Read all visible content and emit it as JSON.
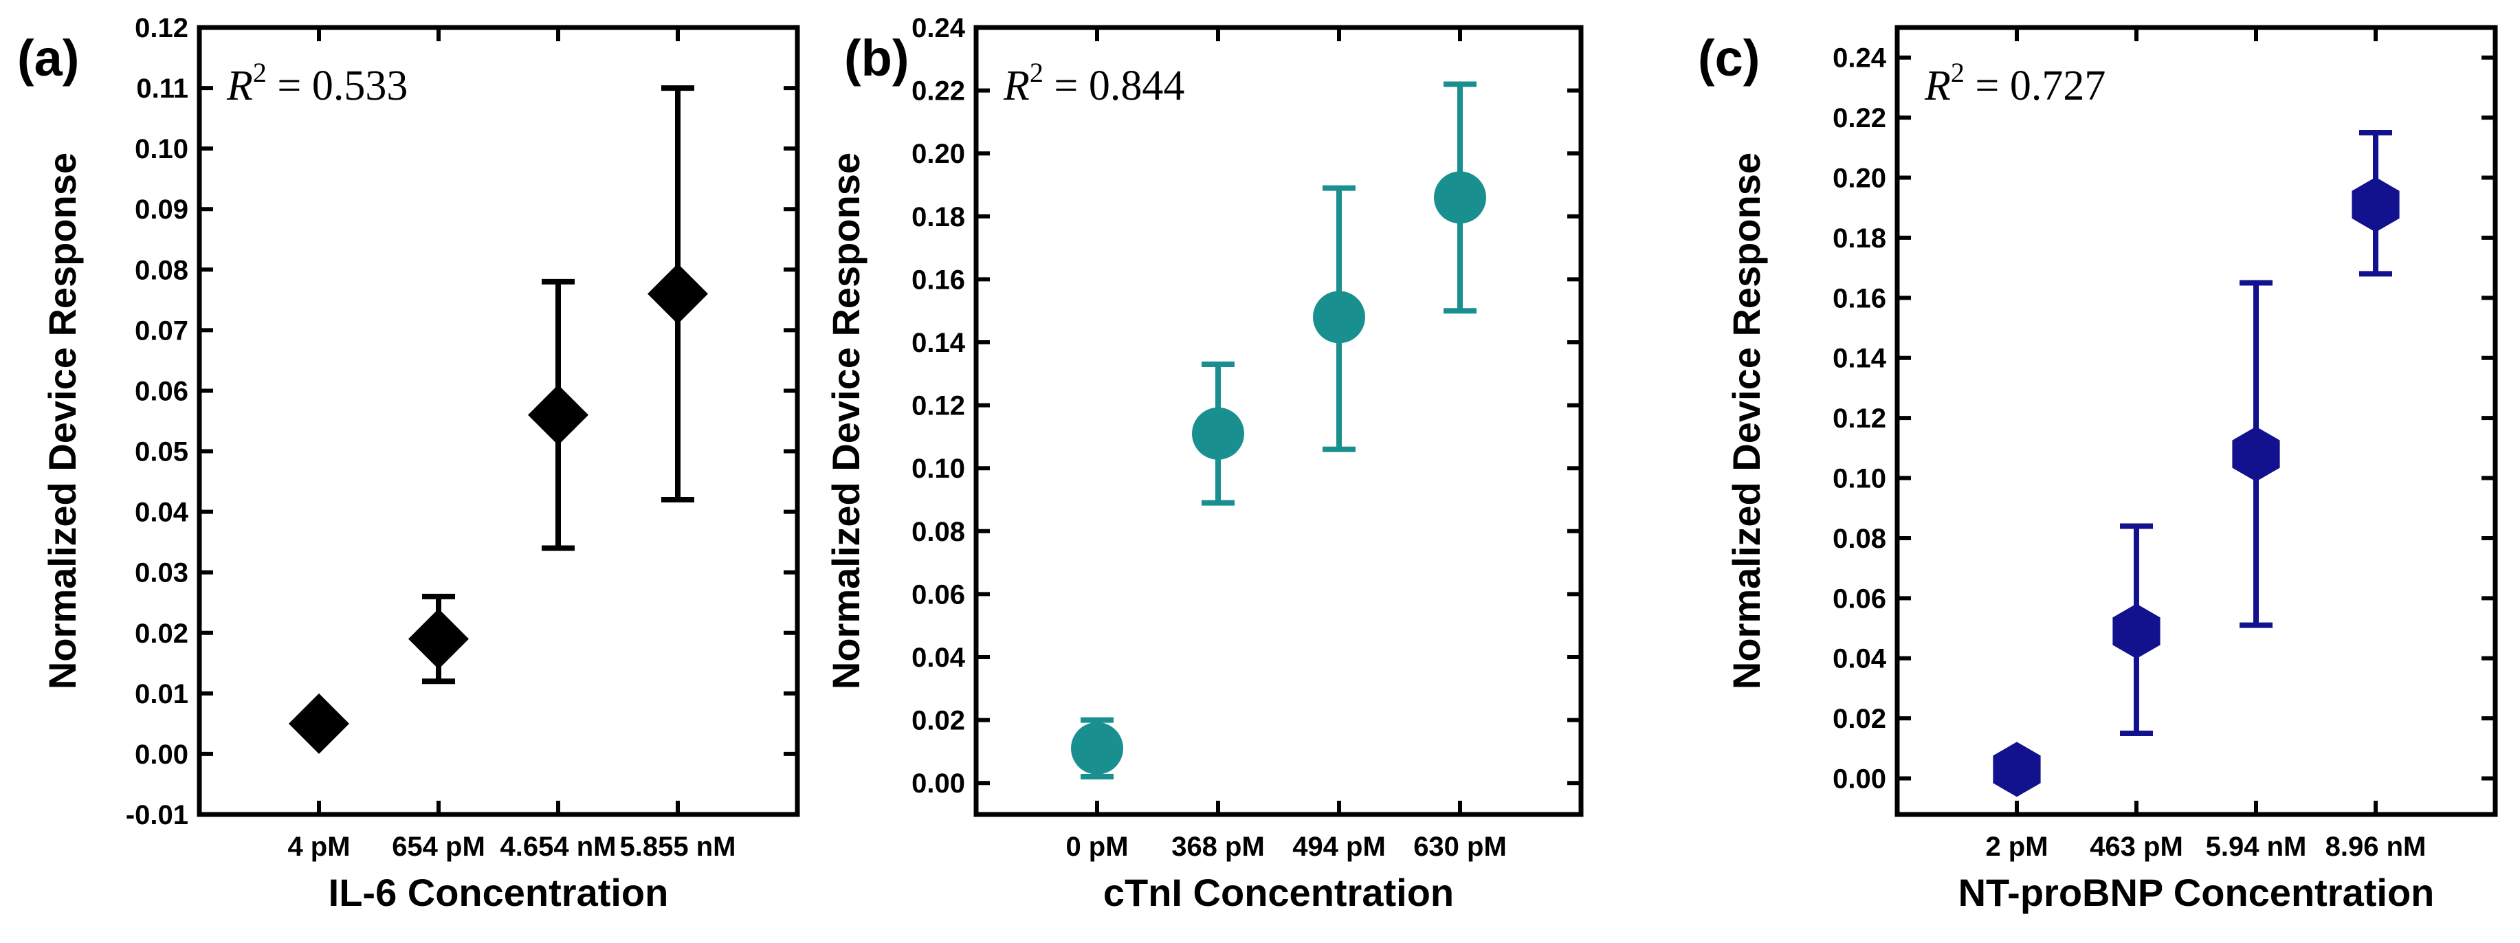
{
  "chart_data": [
    {
      "panel_label": "(a)",
      "type": "scatter",
      "marker": "diamond",
      "color": "#000000",
      "categories": [
        "4 pM",
        "654 pM",
        "4.654 nM",
        "5.855 nM"
      ],
      "values": [
        0.005,
        0.019,
        0.056,
        0.076
      ],
      "error_low": [
        0.005,
        0.012,
        0.034,
        0.042
      ],
      "error_high": [
        0.005,
        0.026,
        0.078,
        0.11
      ],
      "xlabel": "IL-6 Concentration",
      "ylabel": "Normalized Device Response",
      "ylim": [
        -0.01,
        0.12
      ],
      "yticks": [
        -0.01,
        0.0,
        0.01,
        0.02,
        0.03,
        0.04,
        0.05,
        0.06,
        0.07,
        0.08,
        0.09,
        0.1,
        0.11,
        0.12
      ],
      "ytick_labels": [
        "-0.01",
        "0.00",
        "0.01",
        "0.02",
        "0.03",
        "0.04",
        "0.05",
        "0.06",
        "0.07",
        "0.08",
        "0.09",
        "0.10",
        "0.11",
        "0.12"
      ],
      "r2_label": "R",
      "r2_exp": "2",
      "r2_value": " = 0.533"
    },
    {
      "panel_label": "(b)",
      "type": "scatter",
      "marker": "circle",
      "color": "#1a8f8f",
      "categories": [
        "0 pM",
        "368 pM",
        "494 pM",
        "630 pM"
      ],
      "values": [
        0.011,
        0.111,
        0.148,
        0.186
      ],
      "error_low": [
        0.002,
        0.089,
        0.106,
        0.15
      ],
      "error_high": [
        0.02,
        0.133,
        0.189,
        0.222
      ],
      "xlabel": "cTnI Concentration",
      "ylabel": "Normalized Device Response",
      "ylim": [
        -0.01,
        0.24
      ],
      "yticks": [
        0.0,
        0.02,
        0.04,
        0.06,
        0.08,
        0.1,
        0.12,
        0.14,
        0.16,
        0.18,
        0.2,
        0.22,
        0.24
      ],
      "ytick_labels": [
        "0.00",
        "0.02",
        "0.04",
        "0.06",
        "0.08",
        "0.10",
        "0.12",
        "0.14",
        "0.16",
        "0.18",
        "0.20",
        "0.22",
        "0.24"
      ],
      "r2_label": "R",
      "r2_exp": "2",
      "r2_value": " = 0.844"
    },
    {
      "panel_label": "(c)",
      "type": "scatter",
      "marker": "hexagon",
      "color": "#12128f",
      "categories": [
        "2 pM",
        "463 pM",
        "5.94 nM",
        "8.96 nM"
      ],
      "values": [
        0.003,
        0.049,
        0.108,
        0.191
      ],
      "error_low": [
        0.003,
        0.015,
        0.051,
        0.168
      ],
      "error_high": [
        0.003,
        0.084,
        0.165,
        0.215
      ],
      "xlabel": "NT-proBNP Concentration",
      "ylabel": "Normalized Device Response",
      "ylim": [
        -0.012,
        0.25
      ],
      "yticks": [
        0.0,
        0.02,
        0.04,
        0.06,
        0.08,
        0.1,
        0.12,
        0.14,
        0.16,
        0.18,
        0.2,
        0.22,
        0.24
      ],
      "ytick_labels": [
        "0.00",
        "0.02",
        "0.04",
        "0.06",
        "0.08",
        "0.10",
        "0.12",
        "0.14",
        "0.16",
        "0.18",
        "0.20",
        "0.22",
        "0.24"
      ],
      "r2_label": "R",
      "r2_exp": "2",
      "r2_value": " = 0.727"
    }
  ]
}
